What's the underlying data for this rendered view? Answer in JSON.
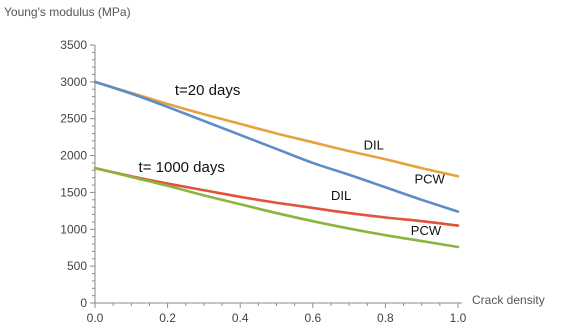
{
  "chart_data": {
    "type": "line",
    "title": "",
    "ylabel": "Young's modulus (MPa)",
    "xlabel": "Crack density",
    "xlim": [
      0,
      1
    ],
    "ylim": [
      0,
      3500
    ],
    "xticks": [
      "0.0",
      "0.2",
      "0.4",
      "0.6",
      "0.8",
      "1.0"
    ],
    "yticks": [
      "0",
      "500",
      "1000",
      "1500",
      "2000",
      "2500",
      "3000",
      "3500"
    ],
    "grid": false,
    "series": [
      {
        "name": "DIL",
        "group": "t=20 days",
        "color": "#E6A23C",
        "x": [
          0.0,
          0.1,
          0.2,
          0.3,
          0.4,
          0.5,
          0.6,
          0.7,
          0.8,
          0.9,
          1.0
        ],
        "y": [
          3000,
          2850,
          2700,
          2560,
          2430,
          2300,
          2180,
          2060,
          1950,
          1830,
          1720
        ]
      },
      {
        "name": "PCW",
        "group": "t=20 days",
        "color": "#5B8DC9",
        "x": [
          0.0,
          0.1,
          0.2,
          0.3,
          0.4,
          0.5,
          0.6,
          0.7,
          0.8,
          0.9,
          1.0
        ],
        "y": [
          3000,
          2840,
          2660,
          2470,
          2280,
          2090,
          1900,
          1740,
          1570,
          1400,
          1240
        ]
      },
      {
        "name": "DIL",
        "group": "t= 1000 days",
        "color": "#E0533D",
        "x": [
          0.0,
          0.1,
          0.2,
          0.3,
          0.4,
          0.5,
          0.6,
          0.7,
          0.8,
          0.9,
          1.0
        ],
        "y": [
          1830,
          1720,
          1620,
          1530,
          1440,
          1360,
          1290,
          1220,
          1160,
          1110,
          1050
        ]
      },
      {
        "name": "PCW",
        "group": "t= 1000 days",
        "color": "#8DB43E",
        "x": [
          0.0,
          0.1,
          0.2,
          0.3,
          0.4,
          0.5,
          0.6,
          0.7,
          0.8,
          0.9,
          1.0
        ],
        "y": [
          1830,
          1710,
          1590,
          1460,
          1340,
          1220,
          1110,
          1010,
          920,
          840,
          760
        ]
      }
    ],
    "annotations": [
      {
        "text": "t=20 days",
        "x": 0.22,
        "y": 2820,
        "size": 15
      },
      {
        "text": "DIL",
        "x": 0.74,
        "y": 2080,
        "size": 13
      },
      {
        "text": "t= 1000 days",
        "x": 0.12,
        "y": 1780,
        "size": 15
      },
      {
        "text": "PCW",
        "x": 0.88,
        "y": 1620,
        "size": 13
      },
      {
        "text": "DIL",
        "x": 0.65,
        "y": 1400,
        "size": 13
      },
      {
        "text": "PCW",
        "x": 0.87,
        "y": 920,
        "size": 13
      }
    ]
  }
}
